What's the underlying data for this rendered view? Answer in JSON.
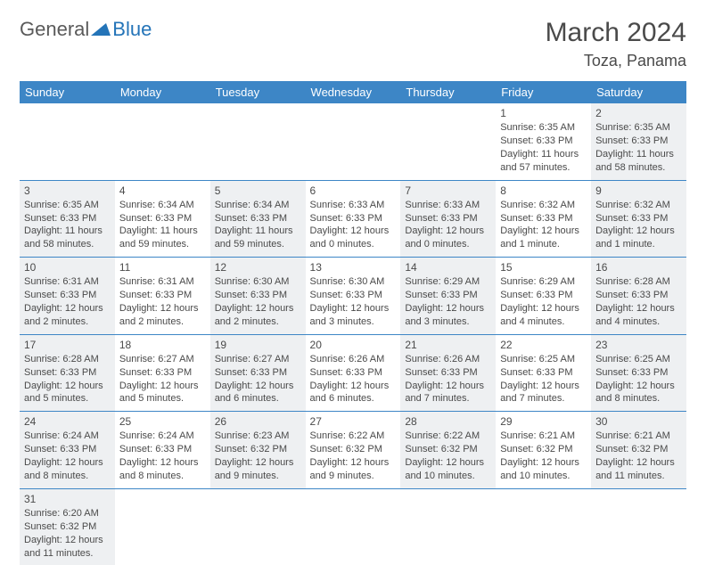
{
  "logo": {
    "part1": "General",
    "part2": "Blue",
    "triangle_color": "#2474b8"
  },
  "title": "March 2024",
  "location": "Toza, Panama",
  "colors": {
    "header_bg": "#3d86c6",
    "header_text": "#ffffff",
    "cell_alt_bg": "#eef0f2",
    "cell_bg": "#ffffff",
    "border": "#3d86c6",
    "text": "#4a4a4a"
  },
  "typography": {
    "title_fontsize": 30,
    "location_fontsize": 18,
    "header_fontsize": 13,
    "cell_fontsize": 11
  },
  "day_headers": [
    "Sunday",
    "Monday",
    "Tuesday",
    "Wednesday",
    "Thursday",
    "Friday",
    "Saturday"
  ],
  "weeks": [
    [
      null,
      null,
      null,
      null,
      null,
      {
        "n": "1",
        "sr": "Sunrise: 6:35 AM",
        "ss": "Sunset: 6:33 PM",
        "dl": "Daylight: 11 hours and 57 minutes."
      },
      {
        "n": "2",
        "sr": "Sunrise: 6:35 AM",
        "ss": "Sunset: 6:33 PM",
        "dl": "Daylight: 11 hours and 58 minutes."
      }
    ],
    [
      {
        "n": "3",
        "sr": "Sunrise: 6:35 AM",
        "ss": "Sunset: 6:33 PM",
        "dl": "Daylight: 11 hours and 58 minutes."
      },
      {
        "n": "4",
        "sr": "Sunrise: 6:34 AM",
        "ss": "Sunset: 6:33 PM",
        "dl": "Daylight: 11 hours and 59 minutes."
      },
      {
        "n": "5",
        "sr": "Sunrise: 6:34 AM",
        "ss": "Sunset: 6:33 PM",
        "dl": "Daylight: 11 hours and 59 minutes."
      },
      {
        "n": "6",
        "sr": "Sunrise: 6:33 AM",
        "ss": "Sunset: 6:33 PM",
        "dl": "Daylight: 12 hours and 0 minutes."
      },
      {
        "n": "7",
        "sr": "Sunrise: 6:33 AM",
        "ss": "Sunset: 6:33 PM",
        "dl": "Daylight: 12 hours and 0 minutes."
      },
      {
        "n": "8",
        "sr": "Sunrise: 6:32 AM",
        "ss": "Sunset: 6:33 PM",
        "dl": "Daylight: 12 hours and 1 minute."
      },
      {
        "n": "9",
        "sr": "Sunrise: 6:32 AM",
        "ss": "Sunset: 6:33 PM",
        "dl": "Daylight: 12 hours and 1 minute."
      }
    ],
    [
      {
        "n": "10",
        "sr": "Sunrise: 6:31 AM",
        "ss": "Sunset: 6:33 PM",
        "dl": "Daylight: 12 hours and 2 minutes."
      },
      {
        "n": "11",
        "sr": "Sunrise: 6:31 AM",
        "ss": "Sunset: 6:33 PM",
        "dl": "Daylight: 12 hours and 2 minutes."
      },
      {
        "n": "12",
        "sr": "Sunrise: 6:30 AM",
        "ss": "Sunset: 6:33 PM",
        "dl": "Daylight: 12 hours and 2 minutes."
      },
      {
        "n": "13",
        "sr": "Sunrise: 6:30 AM",
        "ss": "Sunset: 6:33 PM",
        "dl": "Daylight: 12 hours and 3 minutes."
      },
      {
        "n": "14",
        "sr": "Sunrise: 6:29 AM",
        "ss": "Sunset: 6:33 PM",
        "dl": "Daylight: 12 hours and 3 minutes."
      },
      {
        "n": "15",
        "sr": "Sunrise: 6:29 AM",
        "ss": "Sunset: 6:33 PM",
        "dl": "Daylight: 12 hours and 4 minutes."
      },
      {
        "n": "16",
        "sr": "Sunrise: 6:28 AM",
        "ss": "Sunset: 6:33 PM",
        "dl": "Daylight: 12 hours and 4 minutes."
      }
    ],
    [
      {
        "n": "17",
        "sr": "Sunrise: 6:28 AM",
        "ss": "Sunset: 6:33 PM",
        "dl": "Daylight: 12 hours and 5 minutes."
      },
      {
        "n": "18",
        "sr": "Sunrise: 6:27 AM",
        "ss": "Sunset: 6:33 PM",
        "dl": "Daylight: 12 hours and 5 minutes."
      },
      {
        "n": "19",
        "sr": "Sunrise: 6:27 AM",
        "ss": "Sunset: 6:33 PM",
        "dl": "Daylight: 12 hours and 6 minutes."
      },
      {
        "n": "20",
        "sr": "Sunrise: 6:26 AM",
        "ss": "Sunset: 6:33 PM",
        "dl": "Daylight: 12 hours and 6 minutes."
      },
      {
        "n": "21",
        "sr": "Sunrise: 6:26 AM",
        "ss": "Sunset: 6:33 PM",
        "dl": "Daylight: 12 hours and 7 minutes."
      },
      {
        "n": "22",
        "sr": "Sunrise: 6:25 AM",
        "ss": "Sunset: 6:33 PM",
        "dl": "Daylight: 12 hours and 7 minutes."
      },
      {
        "n": "23",
        "sr": "Sunrise: 6:25 AM",
        "ss": "Sunset: 6:33 PM",
        "dl": "Daylight: 12 hours and 8 minutes."
      }
    ],
    [
      {
        "n": "24",
        "sr": "Sunrise: 6:24 AM",
        "ss": "Sunset: 6:33 PM",
        "dl": "Daylight: 12 hours and 8 minutes."
      },
      {
        "n": "25",
        "sr": "Sunrise: 6:24 AM",
        "ss": "Sunset: 6:33 PM",
        "dl": "Daylight: 12 hours and 8 minutes."
      },
      {
        "n": "26",
        "sr": "Sunrise: 6:23 AM",
        "ss": "Sunset: 6:32 PM",
        "dl": "Daylight: 12 hours and 9 minutes."
      },
      {
        "n": "27",
        "sr": "Sunrise: 6:22 AM",
        "ss": "Sunset: 6:32 PM",
        "dl": "Daylight: 12 hours and 9 minutes."
      },
      {
        "n": "28",
        "sr": "Sunrise: 6:22 AM",
        "ss": "Sunset: 6:32 PM",
        "dl": "Daylight: 12 hours and 10 minutes."
      },
      {
        "n": "29",
        "sr": "Sunrise: 6:21 AM",
        "ss": "Sunset: 6:32 PM",
        "dl": "Daylight: 12 hours and 10 minutes."
      },
      {
        "n": "30",
        "sr": "Sunrise: 6:21 AM",
        "ss": "Sunset: 6:32 PM",
        "dl": "Daylight: 12 hours and 11 minutes."
      }
    ],
    [
      {
        "n": "31",
        "sr": "Sunrise: 6:20 AM",
        "ss": "Sunset: 6:32 PM",
        "dl": "Daylight: 12 hours and 11 minutes."
      },
      null,
      null,
      null,
      null,
      null,
      null
    ]
  ]
}
